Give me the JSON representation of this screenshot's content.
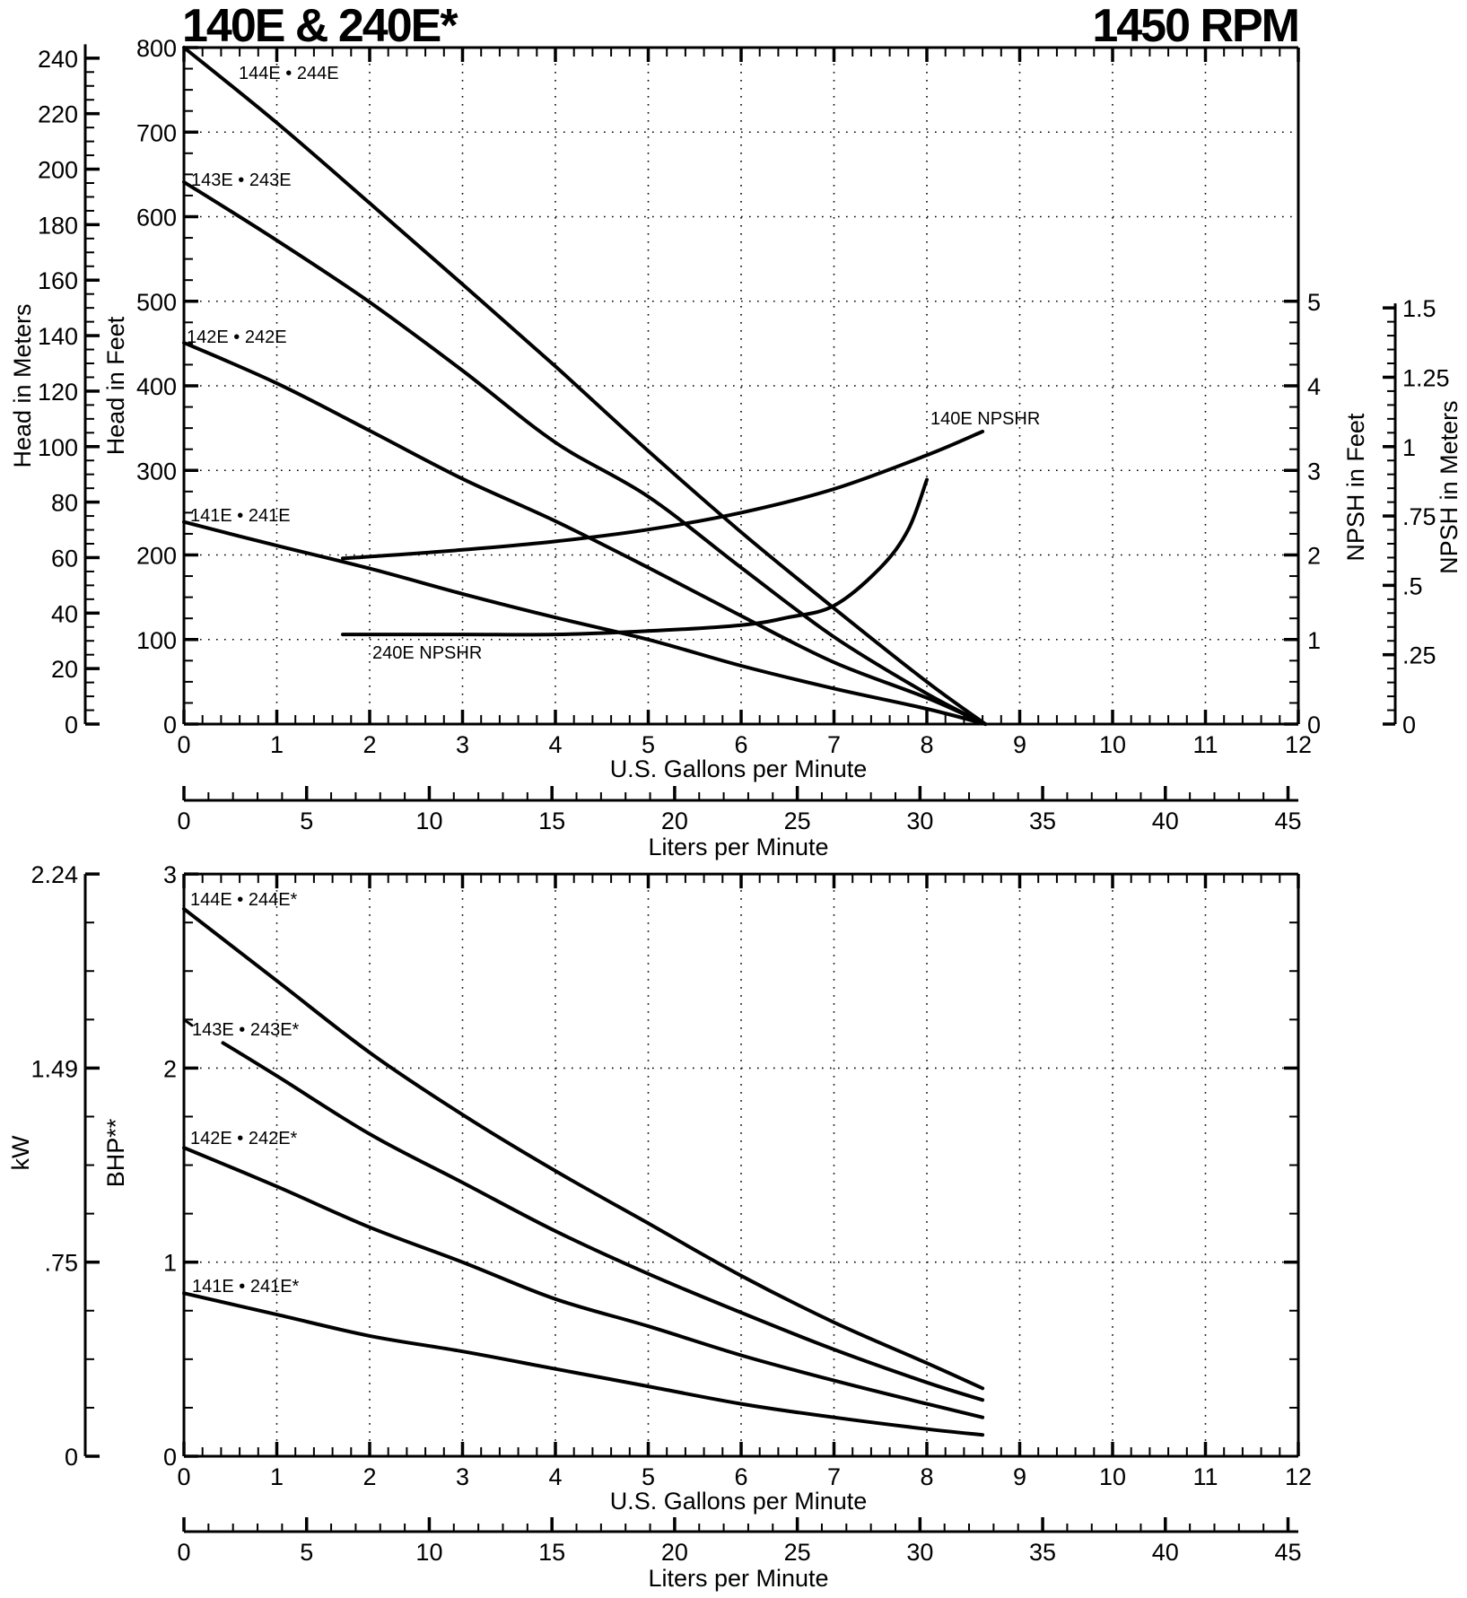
{
  "header": {
    "title_left": "140E & 240E*",
    "title_right": "1450 RPM"
  },
  "colors": {
    "ink": "#000000",
    "background": "#ffffff"
  },
  "chart_data": [
    {
      "id": "head-capacity",
      "type": "line",
      "title": "140E & 240E* — 1450 RPM",
      "xlabel": "U.S. Gallons per Minute",
      "xlabel_secondary": "Liters per Minute",
      "ylabel": "Head in Feet",
      "ylabel_secondary_left": "Head in Meters",
      "ylabel_right": "NPSH in Feet",
      "ylabel_right_secondary": "NPSH in Meters",
      "xlim": [
        0,
        12
      ],
      "ylim": [
        0,
        800
      ],
      "x_ticks": [
        "0",
        "1",
        "2",
        "3",
        "4",
        "5",
        "6",
        "7",
        "8",
        "9",
        "10",
        "11",
        "12"
      ],
      "x_secondary_ticks": [
        "0",
        "5",
        "10",
        "15",
        "20",
        "25",
        "30",
        "35",
        "40",
        "45"
      ],
      "y_ticks": [
        "0",
        "100",
        "200",
        "300",
        "400",
        "500",
        "600",
        "700",
        "800"
      ],
      "y_meters_ticks": [
        "0",
        "20",
        "40",
        "60",
        "80",
        "100",
        "120",
        "140",
        "160",
        "180",
        "200",
        "220",
        "240"
      ],
      "npsh_feet_ticks": [
        "0",
        "1",
        "2",
        "3",
        "4",
        "5"
      ],
      "npsh_meters_ticks": [
        "0",
        ".25",
        ".5",
        ".75",
        "1",
        "1.25",
        "1.5"
      ],
      "grid": true,
      "series": [
        {
          "name": "144E • 244E",
          "unit": "ft head",
          "x": [
            0,
            1,
            2,
            3,
            4,
            5,
            6,
            7,
            8,
            8.63
          ],
          "y": [
            800,
            711,
            616,
            520,
            423,
            323,
            227,
            137,
            50,
            0
          ]
        },
        {
          "name": "143E • 243E",
          "unit": "ft head",
          "x": [
            0,
            1,
            2,
            3,
            4,
            5,
            6,
            7,
            8,
            8.63
          ],
          "y": [
            641,
            572,
            499,
            418,
            333,
            269,
            185,
            103,
            36,
            0
          ]
        },
        {
          "name": "142E • 242E",
          "unit": "ft head",
          "x": [
            0,
            1,
            2,
            3,
            4,
            5,
            6,
            7,
            8,
            8.63
          ],
          "y": [
            451,
            403,
            347,
            290,
            240,
            185,
            128,
            73,
            31,
            0
          ]
        },
        {
          "name": "141E • 241E",
          "unit": "ft head",
          "x": [
            0,
            1,
            2,
            3,
            4,
            5,
            6,
            7,
            8,
            8.63
          ],
          "y": [
            239,
            211,
            184,
            154,
            126,
            100,
            69,
            42,
            18,
            0
          ]
        },
        {
          "name": "140E NPSHR",
          "unit": "ft NPSH",
          "x": [
            1.71,
            2,
            3,
            4,
            5,
            6,
            7,
            8,
            8.6
          ],
          "y": [
            1.96,
            1.98,
            2.06,
            2.16,
            2.3,
            2.5,
            2.78,
            3.18,
            3.46
          ]
        },
        {
          "name": "240E NPSHR",
          "unit": "ft NPSH",
          "x": [
            1.71,
            3,
            4,
            5,
            6,
            6.5,
            7,
            7.5,
            7.8,
            8.0
          ],
          "y": [
            1.06,
            1.06,
            1.06,
            1.1,
            1.17,
            1.26,
            1.4,
            1.85,
            2.3,
            2.89
          ]
        }
      ],
      "annotations": [
        "144E • 244E",
        "143E • 243E",
        "142E • 242E",
        "141E • 241E",
        "140E NPSHR",
        "240E NPSHR"
      ]
    },
    {
      "id": "power",
      "type": "line",
      "xlabel": "U.S. Gallons per Minute",
      "xlabel_secondary": "Liters per Minute",
      "ylabel": "BHP**",
      "ylabel_secondary_left": "kW",
      "xlim": [
        0,
        12
      ],
      "ylim": [
        0,
        3
      ],
      "x_ticks": [
        "0",
        "1",
        "2",
        "3",
        "4",
        "5",
        "6",
        "7",
        "8",
        "9",
        "10",
        "11",
        "12"
      ],
      "x_secondary_ticks": [
        "0",
        "5",
        "10",
        "15",
        "20",
        "25",
        "30",
        "35",
        "40",
        "45"
      ],
      "y_ticks": [
        "0",
        "1",
        "2",
        "3"
      ],
      "kw_ticks": [
        "0",
        ".75",
        "1.49",
        "2.24"
      ],
      "grid": true,
      "series": [
        {
          "name": "144E • 244E*",
          "x": [
            0,
            1,
            2,
            3,
            4,
            5,
            6,
            7,
            8,
            8.6
          ],
          "y": [
            2.82,
            2.45,
            2.08,
            1.76,
            1.47,
            1.2,
            0.93,
            0.69,
            0.48,
            0.35
          ]
        },
        {
          "name": "143E • 243E*",
          "x": [
            0.42,
            1,
            2,
            3,
            4,
            5,
            6,
            7,
            8,
            8.6
          ],
          "y": [
            2.13,
            1.96,
            1.66,
            1.41,
            1.16,
            0.94,
            0.74,
            0.55,
            0.38,
            0.29
          ]
        },
        {
          "name": "142E • 242E*",
          "x": [
            0,
            1,
            2,
            3,
            4,
            5,
            6,
            7,
            8,
            8.6
          ],
          "y": [
            1.59,
            1.39,
            1.18,
            1.0,
            0.81,
            0.67,
            0.52,
            0.39,
            0.27,
            0.2
          ]
        },
        {
          "name": "141E • 241E*",
          "x": [
            0,
            1,
            2,
            3,
            4,
            5,
            6,
            7,
            8,
            8.6
          ],
          "y": [
            0.84,
            0.73,
            0.62,
            0.54,
            0.45,
            0.36,
            0.27,
            0.2,
            0.14,
            0.11
          ]
        }
      ],
      "annotations": [
        "144E • 244E*",
        "143E • 243E*",
        "142E • 242E*",
        "141E • 241E*"
      ]
    }
  ]
}
